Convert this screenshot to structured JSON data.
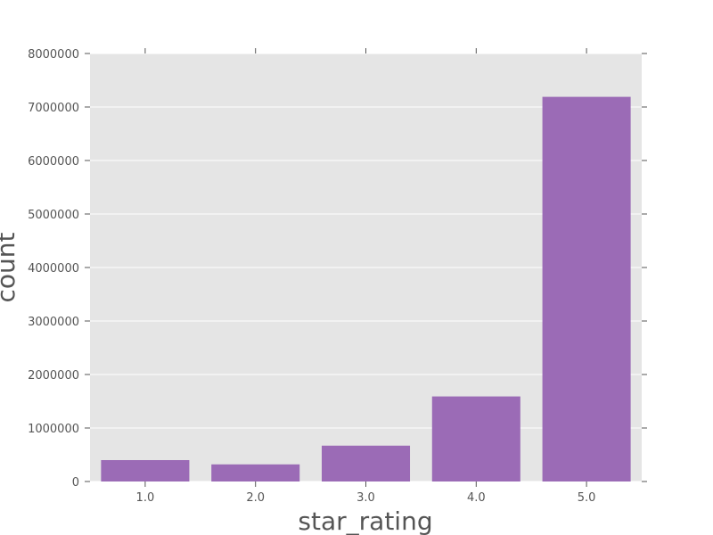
{
  "chart_data": {
    "type": "bar",
    "categories": [
      "1.0",
      "2.0",
      "3.0",
      "4.0",
      "5.0"
    ],
    "values": [
      400000,
      320000,
      670000,
      1590000,
      7190000
    ],
    "xlabel": "star_rating",
    "ylabel": "count",
    "ylim": [
      0,
      8000000
    ],
    "yticks": [
      "0",
      "1000000",
      "2000000",
      "3000000",
      "4000000",
      "5000000",
      "6000000",
      "7000000",
      "8000000"
    ],
    "grid": true,
    "bar_color": "#9b6bb6",
    "plot_background": "#e5e5e5",
    "grid_color": "#ffffff",
    "text_color": "#555555"
  }
}
